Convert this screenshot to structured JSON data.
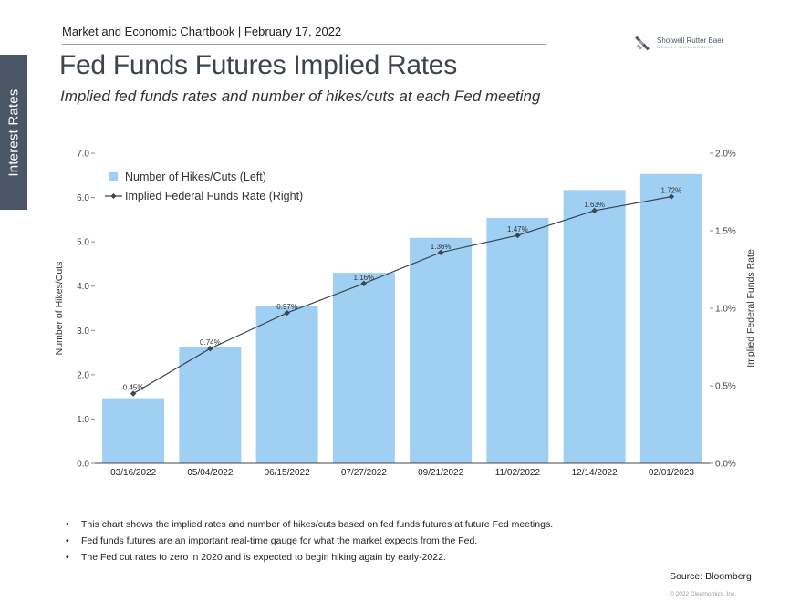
{
  "header": {
    "side_tab": "Interest Rates",
    "chartbook_line": "Market and Economic Chartbook | February 17, 2022",
    "logo_text": "Shotwell Rutter Baer",
    "logo_subtext": "WEALTH MANAGEMENT",
    "title": "Fed Funds Futures Implied Rates",
    "subtitle": "Implied fed funds rates and number of hikes/cuts at each Fed meeting"
  },
  "chart_data": {
    "type": "bar",
    "categories": [
      "03/16/2022",
      "05/04/2022",
      "06/15/2022",
      "07/27/2022",
      "09/21/2022",
      "11/02/2022",
      "12/14/2022",
      "02/01/2023"
    ],
    "series": [
      {
        "name": "Number of Hikes/Cuts (Left)",
        "type": "bar",
        "axis": "left",
        "values": [
          1.47,
          2.63,
          3.56,
          4.3,
          5.09,
          5.54,
          6.17,
          6.53
        ],
        "color": "#9fd0f4"
      },
      {
        "name": "Implied Federal Funds Rate (Right)",
        "type": "line",
        "axis": "right",
        "values": [
          0.45,
          0.74,
          0.97,
          1.16,
          1.36,
          1.47,
          1.63,
          1.72
        ],
        "labels": [
          "0.45%",
          "0.74%",
          "0.97%",
          "1.16%",
          "1.36%",
          "1.47%",
          "1.63%",
          "1.72%"
        ],
        "color": "#3d4451"
      }
    ],
    "ylabel": "Number of Hikes/Cuts",
    "ylabel_right": "Implied Federal Funds Rate",
    "ylim": [
      0,
      7
    ],
    "yticks": [
      "0.0",
      "1.0",
      "2.0",
      "3.0",
      "4.0",
      "5.0",
      "6.0",
      "7.0"
    ],
    "ylim_right": [
      0,
      2.0
    ],
    "yticks_right": [
      "0.0%",
      "0.5%",
      "1.0%",
      "1.5%",
      "2.0%"
    ],
    "grid": false,
    "legend_position": "top-left"
  },
  "notes": [
    "This chart shows the implied rates and number of hikes/cuts based on fed funds futures at future Fed meetings.",
    "Fed funds futures are an important real-time gauge for what the market expects from the Fed.",
    "The Fed cut rates to zero in 2020 and is expected to begin hiking again by early-2022."
  ],
  "footer": {
    "source": "Source: Bloomberg",
    "copyright": "© 2022 Clearnomics, Inc."
  }
}
